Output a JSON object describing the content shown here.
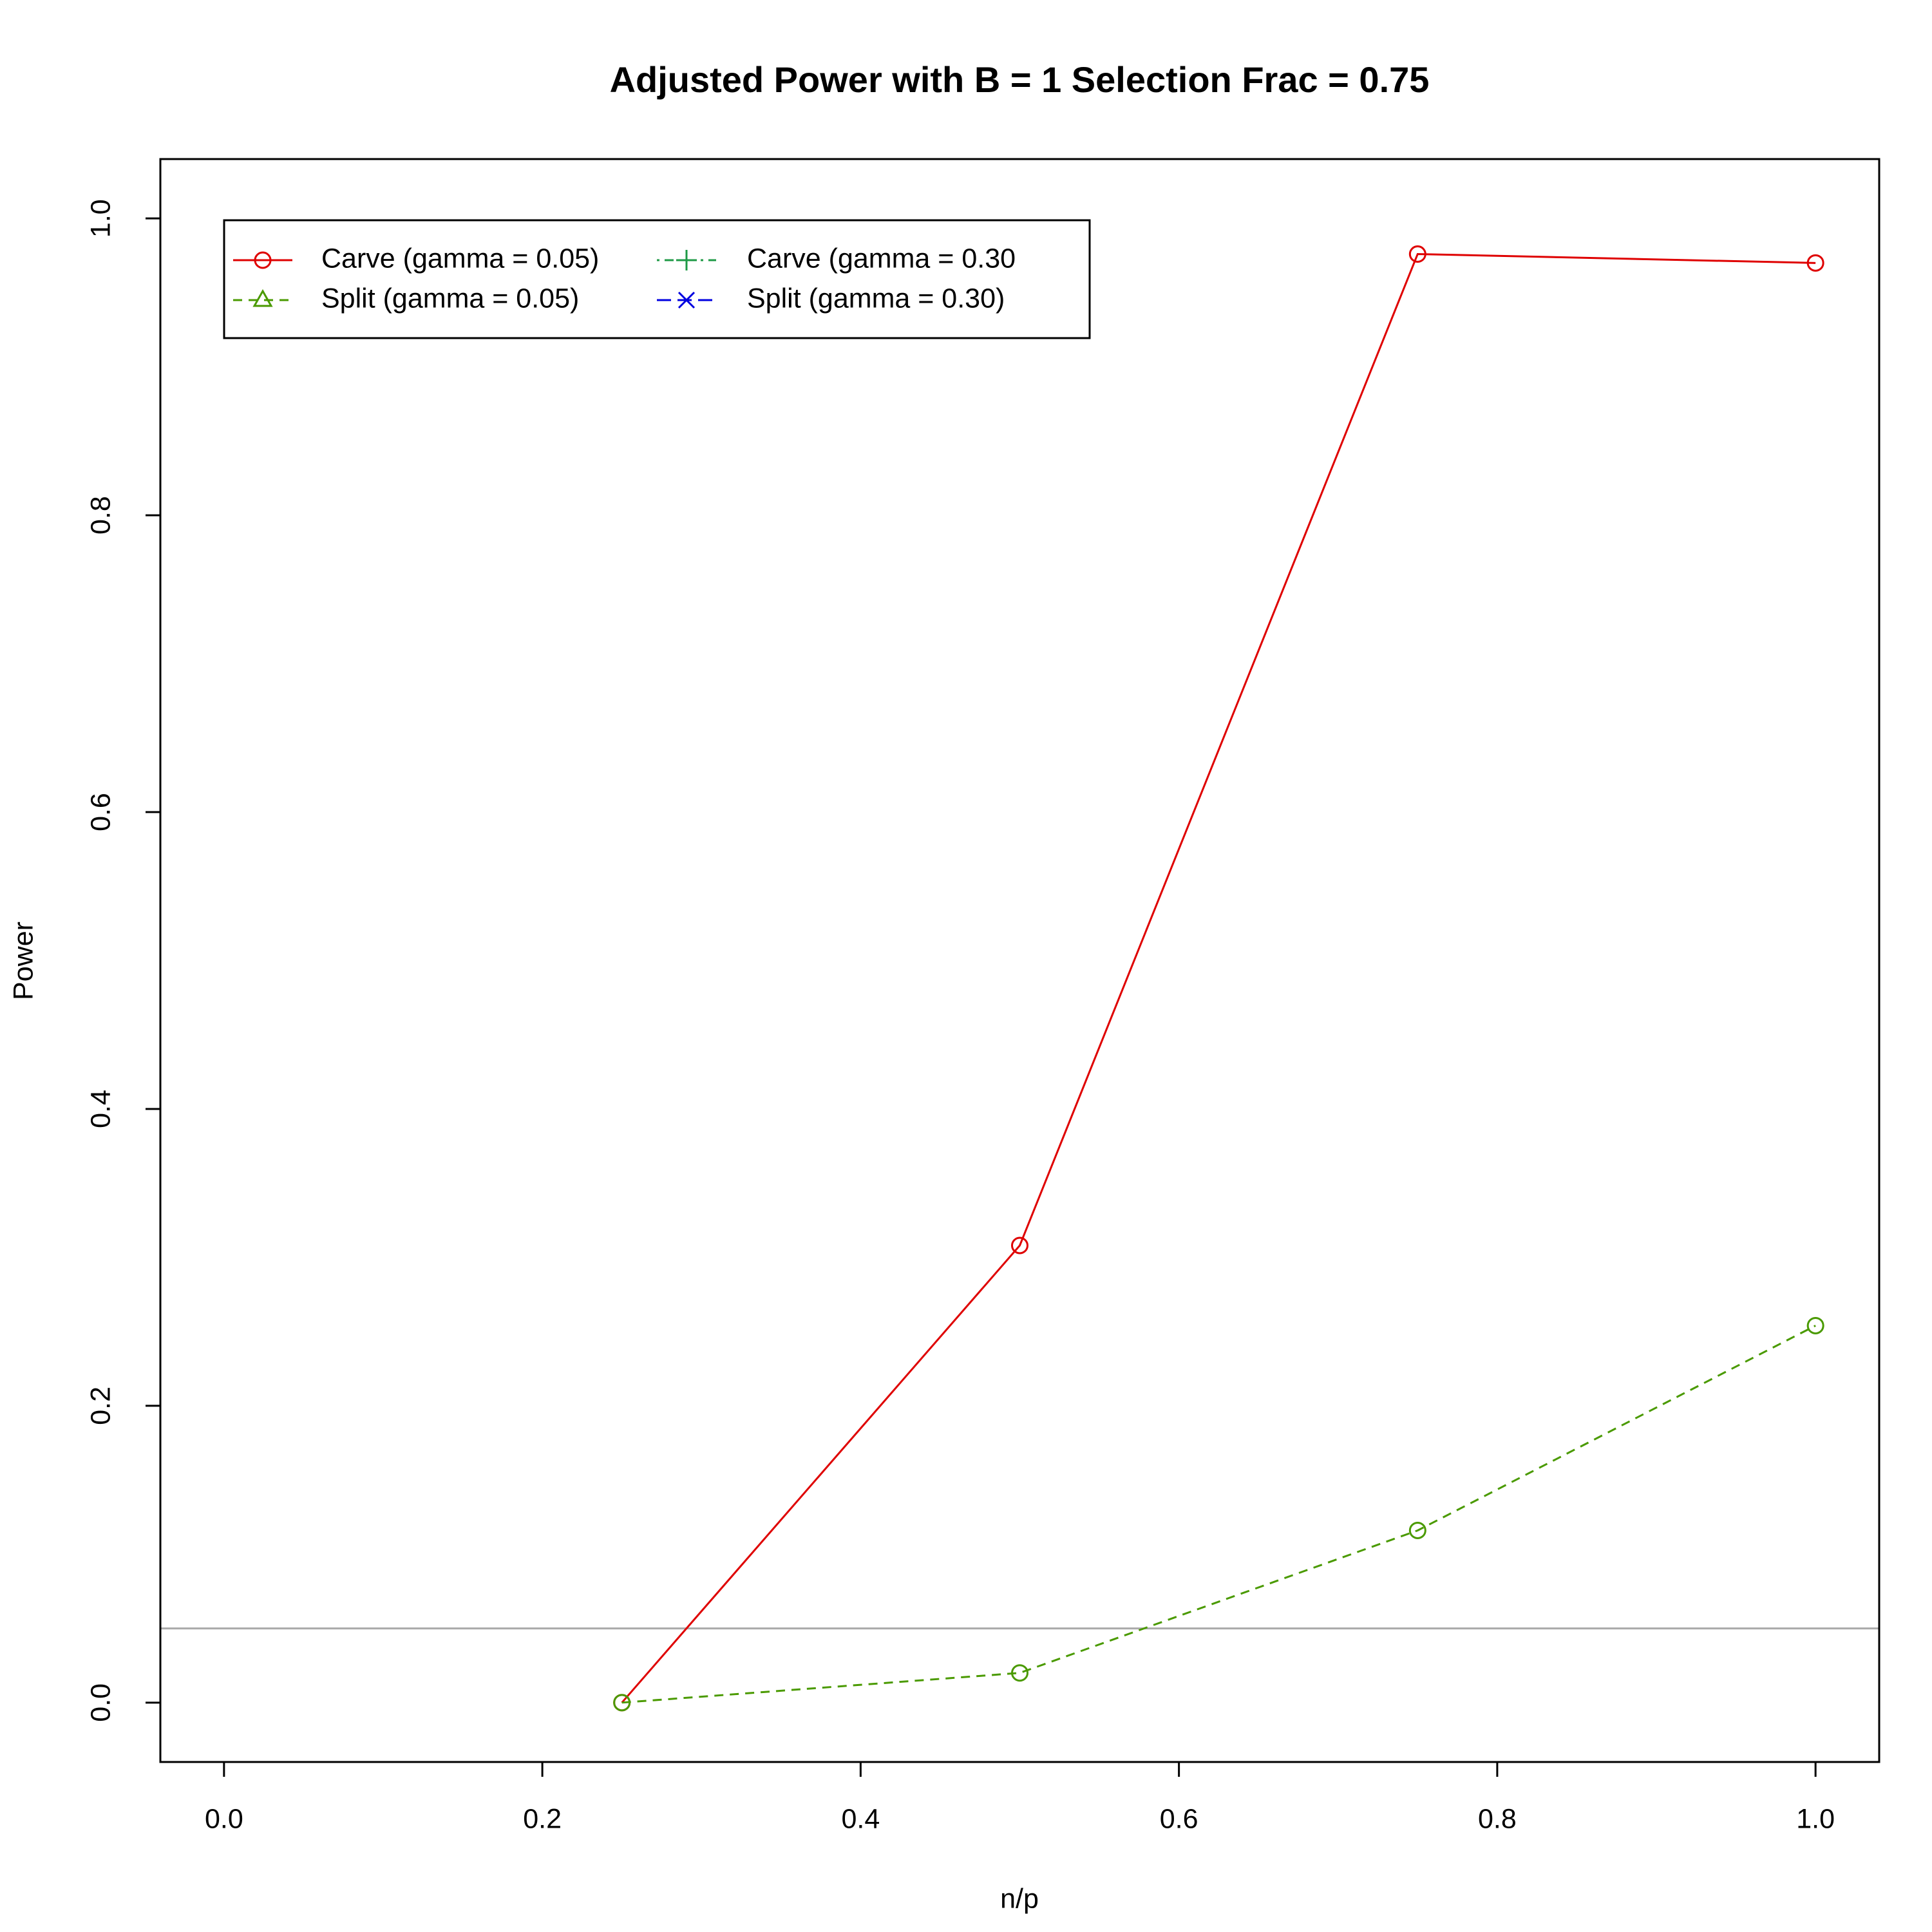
{
  "chart_data": {
    "type": "line",
    "title": "Adjusted Power with B = 1 Selection Frac = 0.75",
    "x_label": "n/p",
    "y_label": "Power",
    "x": [
      0.25,
      0.5,
      0.75,
      1.0
    ],
    "series": [
      {
        "name": "Carve (gamma = 0.05)",
        "color": "#df0000",
        "dash": "solid",
        "marker": "circle",
        "legend_marker": "circle",
        "values": [
          0,
          0.308,
          0.976,
          0.97
        ]
      },
      {
        "name": "Split (gamma = 0.05)",
        "color": "#4a9a00",
        "dash": "dashed",
        "marker": "circle",
        "legend_marker": "triangle",
        "values": [
          0,
          0.02,
          0.116,
          0.254
        ]
      },
      {
        "name": "Carve (gamma = 0.30",
        "color": "#1e9a46",
        "dash": "dotdash",
        "marker": "plus",
        "legend_marker": "plus",
        "values": [
          null,
          null,
          null,
          null
        ]
      },
      {
        "name": "Split (gamma = 0.30)",
        "color": "#0000e0",
        "dash": "longdash",
        "marker": "cross",
        "legend_marker": "cross",
        "values": [
          null,
          null,
          null,
          null
        ]
      }
    ],
    "reference_line": 0.05,
    "reference_color": "#aaaaaa",
    "xlim": [
      -0.04,
      1.04
    ],
    "ylim": [
      -0.04,
      1.04
    ],
    "xticks": [
      {
        "value": 0,
        "label": "0.0"
      },
      0.2,
      0.4,
      0.6,
      0.8,
      {
        "value": 1,
        "label": "1.0"
      }
    ],
    "yticks": [
      {
        "value": 0,
        "label": "0.0"
      },
      0.2,
      0.4,
      0.6,
      0.8,
      {
        "value": 1,
        "label": "1.0"
      }
    ],
    "legend": "top-left",
    "grid": false
  }
}
